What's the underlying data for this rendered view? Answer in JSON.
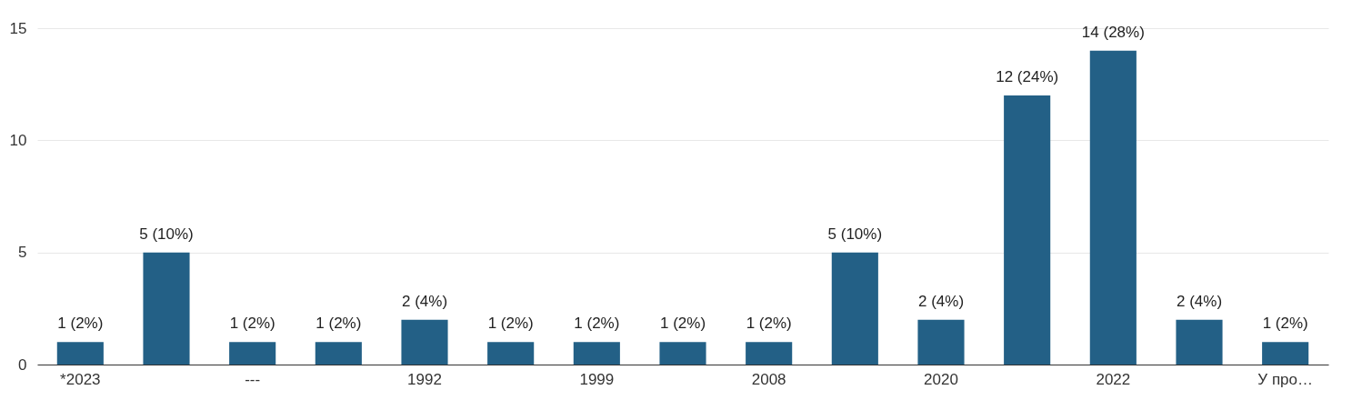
{
  "chart_data": {
    "type": "bar",
    "categories": [
      "*2023",
      null,
      "---",
      null,
      "1992",
      null,
      "1999",
      null,
      "2008",
      null,
      "2020",
      null,
      "2022",
      null,
      "У про…"
    ],
    "values": [
      1,
      5,
      1,
      1,
      2,
      1,
      1,
      1,
      1,
      5,
      2,
      12,
      14,
      2,
      1
    ],
    "value_labels": [
      "1 (2%)",
      "5 (10%)",
      "1 (2%)",
      "1 (2%)",
      "2 (4%)",
      "1 (2%)",
      "1 (2%)",
      "1 (2%)",
      "1 (2%)",
      "5 (10%)",
      "2 (4%)",
      "12 (24%)",
      "14 (28%)",
      "2 (4%)",
      "1 (2%)"
    ],
    "color": "#236086",
    "ylim": [
      0,
      15
    ],
    "yticks": [
      0,
      5,
      10,
      15
    ],
    "grid": "y"
  }
}
